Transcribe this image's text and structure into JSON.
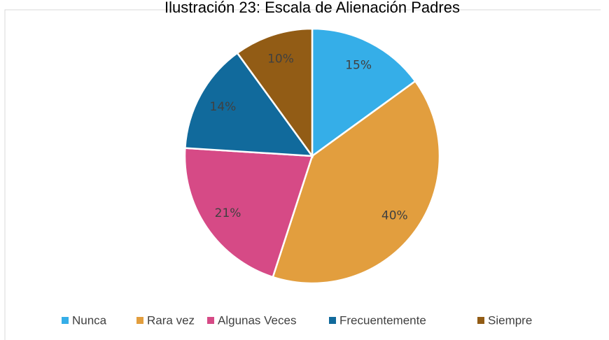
{
  "chart_data": {
    "type": "pie",
    "title": "Ilustración 23: Escala de Alienación Padres",
    "categories": [
      "Nunca",
      "Rara vez",
      "Algunas Veces",
      "Frecuentemente",
      "Siempre"
    ],
    "values": [
      15,
      40,
      21,
      14,
      10
    ],
    "value_labels": [
      "15%",
      "40%",
      "21%",
      "14%",
      "10%"
    ],
    "colors": [
      "#35aee8",
      "#e29e3e",
      "#d64a86",
      "#116a9c",
      "#925c15"
    ],
    "legend": "bottom"
  }
}
